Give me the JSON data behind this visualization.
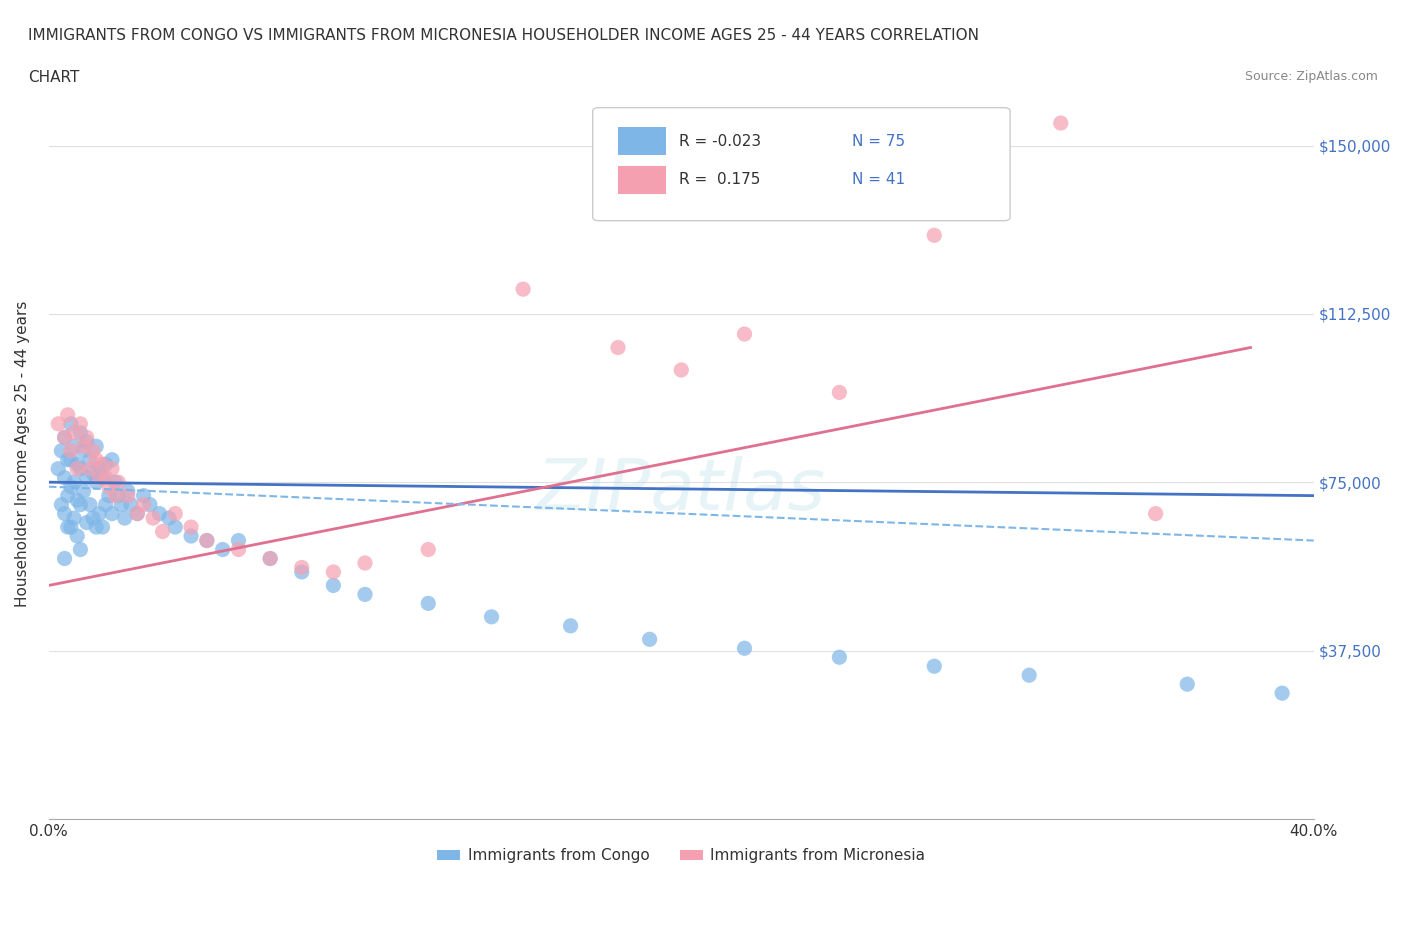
{
  "title_line1": "IMMIGRANTS FROM CONGO VS IMMIGRANTS FROM MICRONESIA HOUSEHOLDER INCOME AGES 25 - 44 YEARS CORRELATION",
  "title_line2": "CHART",
  "source": "Source: ZipAtlas.com",
  "ylabel": "Householder Income Ages 25 - 44 years",
  "xlim": [
    0.0,
    0.4
  ],
  "ylim": [
    0,
    162500
  ],
  "xticks": [
    0.0,
    0.05,
    0.1,
    0.15,
    0.2,
    0.25,
    0.3,
    0.35,
    0.4
  ],
  "ytick_values": [
    0,
    37500,
    75000,
    112500,
    150000
  ],
  "ytick_labels": [
    "",
    "$37,500",
    "$75,000",
    "$112,500",
    "$150,000"
  ],
  "congo_color": "#7EB6E8",
  "micronesia_color": "#F4A0B0",
  "congo_line_color": "#4472C4",
  "micronesia_line_color": "#E07090",
  "dashed_line_color": "#7EB6E8",
  "congo_R": -0.023,
  "congo_N": 75,
  "micronesia_R": 0.175,
  "micronesia_N": 41,
  "grid_color": "#E0E0E0",
  "background_color": "#FFFFFF",
  "congo_scatter_x": [
    0.003,
    0.004,
    0.004,
    0.005,
    0.005,
    0.005,
    0.005,
    0.006,
    0.006,
    0.006,
    0.007,
    0.007,
    0.007,
    0.007,
    0.008,
    0.008,
    0.008,
    0.009,
    0.009,
    0.009,
    0.01,
    0.01,
    0.01,
    0.01,
    0.011,
    0.011,
    0.012,
    0.012,
    0.012,
    0.013,
    0.013,
    0.014,
    0.014,
    0.015,
    0.015,
    0.015,
    0.016,
    0.016,
    0.017,
    0.017,
    0.018,
    0.018,
    0.019,
    0.02,
    0.02,
    0.021,
    0.022,
    0.023,
    0.024,
    0.025,
    0.026,
    0.028,
    0.03,
    0.032,
    0.035,
    0.038,
    0.04,
    0.045,
    0.05,
    0.055,
    0.06,
    0.07,
    0.08,
    0.09,
    0.1,
    0.12,
    0.14,
    0.165,
    0.19,
    0.22,
    0.25,
    0.28,
    0.31,
    0.36,
    0.39
  ],
  "congo_scatter_y": [
    78000,
    82000,
    70000,
    85000,
    76000,
    68000,
    58000,
    80000,
    72000,
    65000,
    88000,
    80000,
    74000,
    65000,
    83000,
    75000,
    67000,
    79000,
    71000,
    63000,
    86000,
    78000,
    70000,
    60000,
    82000,
    73000,
    84000,
    76000,
    66000,
    80000,
    70000,
    77000,
    67000,
    83000,
    75000,
    65000,
    78000,
    68000,
    76000,
    65000,
    79000,
    70000,
    72000,
    80000,
    68000,
    75000,
    72000,
    70000,
    67000,
    73000,
    70000,
    68000,
    72000,
    70000,
    68000,
    67000,
    65000,
    63000,
    62000,
    60000,
    62000,
    58000,
    55000,
    52000,
    50000,
    48000,
    45000,
    43000,
    40000,
    38000,
    36000,
    34000,
    32000,
    30000,
    28000
  ],
  "micronesia_scatter_x": [
    0.003,
    0.005,
    0.006,
    0.007,
    0.008,
    0.009,
    0.01,
    0.011,
    0.012,
    0.013,
    0.014,
    0.015,
    0.016,
    0.017,
    0.018,
    0.019,
    0.02,
    0.021,
    0.022,
    0.025,
    0.028,
    0.03,
    0.033,
    0.036,
    0.04,
    0.045,
    0.05,
    0.06,
    0.07,
    0.08,
    0.09,
    0.1,
    0.12,
    0.15,
    0.18,
    0.2,
    0.22,
    0.25,
    0.28,
    0.32,
    0.35
  ],
  "micronesia_scatter_y": [
    88000,
    85000,
    90000,
    82000,
    86000,
    78000,
    88000,
    83000,
    85000,
    78000,
    82000,
    80000,
    76000,
    79000,
    76000,
    74000,
    78000,
    72000,
    75000,
    72000,
    68000,
    70000,
    67000,
    64000,
    68000,
    65000,
    62000,
    60000,
    58000,
    56000,
    55000,
    57000,
    60000,
    118000,
    105000,
    100000,
    108000,
    95000,
    130000,
    155000,
    68000
  ],
  "congo_trend_x": [
    0.0,
    0.4
  ],
  "congo_trend_y": [
    75000,
    72000
  ],
  "micronesia_trend_x": [
    0.0,
    0.38
  ],
  "micronesia_trend_y": [
    52000,
    105000
  ],
  "dashed_trend_x": [
    0.0,
    0.4
  ],
  "dashed_trend_y": [
    74000,
    62000
  ]
}
